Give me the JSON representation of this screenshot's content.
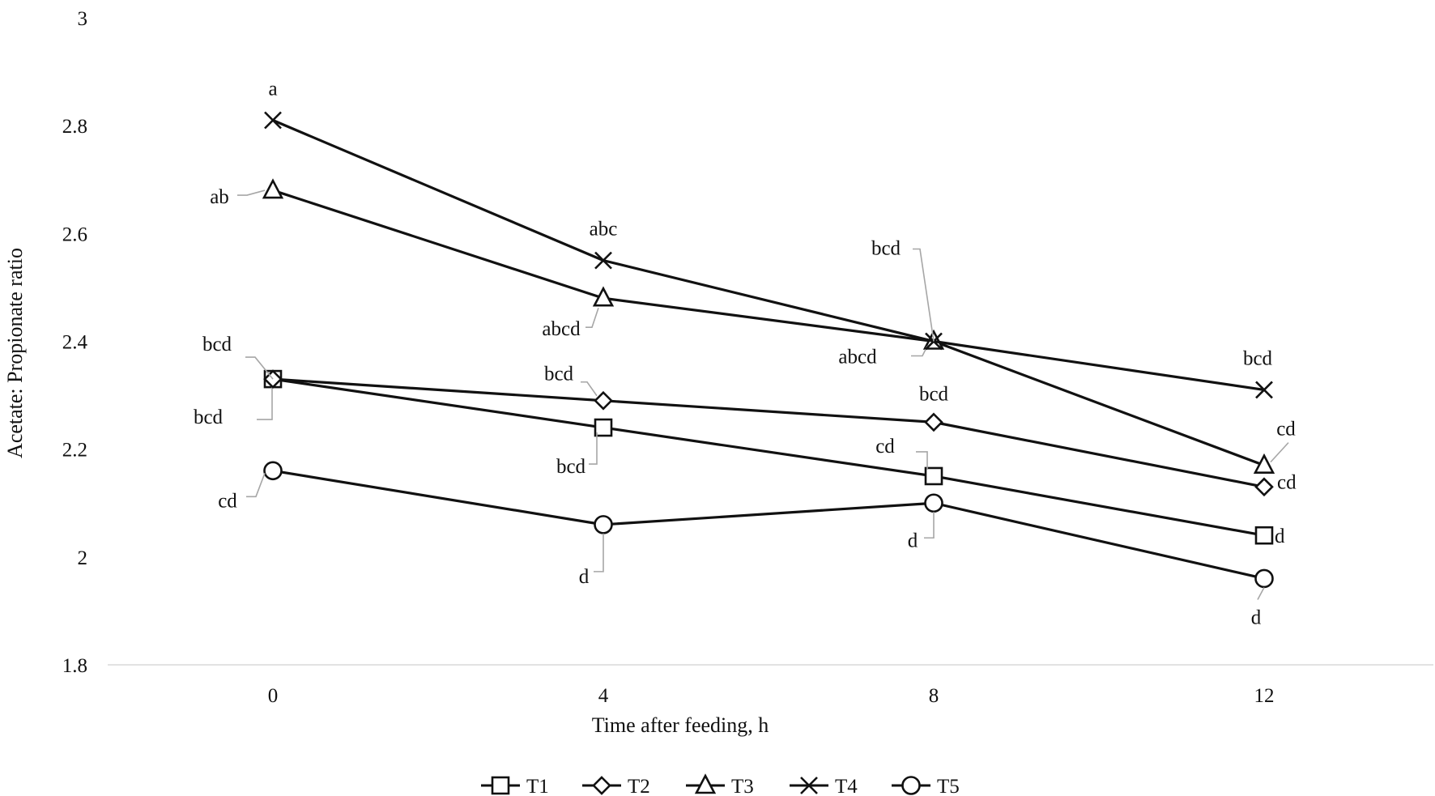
{
  "chart_data": {
    "type": "line",
    "xlabel": "Time after feeding, h",
    "ylabel": "Acetate: Propionate ratio",
    "ylim": [
      1.8,
      3.0
    ],
    "yticks": [
      1.8,
      2,
      2.2,
      2.4,
      2.6,
      2.8,
      3
    ],
    "ytick_labels": [
      "1.8",
      "2",
      "2.2",
      "2.4",
      "2.6",
      "2.8",
      "3"
    ],
    "x": [
      0,
      4,
      8,
      12
    ],
    "x_labels": [
      "0",
      "4",
      "8",
      "12"
    ],
    "grid": false,
    "legend_position": "bottom",
    "series": [
      {
        "name": "T1",
        "marker": "square",
        "values": [
          2.33,
          2.24,
          2.15,
          2.04
        ],
        "labels": [
          "bcd",
          "bcd",
          "cd",
          "d"
        ]
      },
      {
        "name": "T2",
        "marker": "diamond",
        "values": [
          2.33,
          2.29,
          2.25,
          2.13
        ],
        "labels": [
          "bcd",
          "bcd",
          "bcd",
          "cd"
        ]
      },
      {
        "name": "T3",
        "marker": "triangle",
        "values": [
          2.68,
          2.48,
          2.4,
          2.17
        ],
        "labels": [
          "ab",
          "abcd",
          "abcd",
          "cd"
        ]
      },
      {
        "name": "T4",
        "marker": "x",
        "values": [
          2.81,
          2.55,
          2.4,
          2.31
        ],
        "labels": [
          "a",
          "abc",
          "bcd",
          "bcd"
        ]
      },
      {
        "name": "T5",
        "marker": "circle",
        "values": [
          2.16,
          2.06,
          2.1,
          1.96
        ],
        "labels": [
          "cd",
          "d",
          "d",
          "d"
        ]
      }
    ]
  }
}
